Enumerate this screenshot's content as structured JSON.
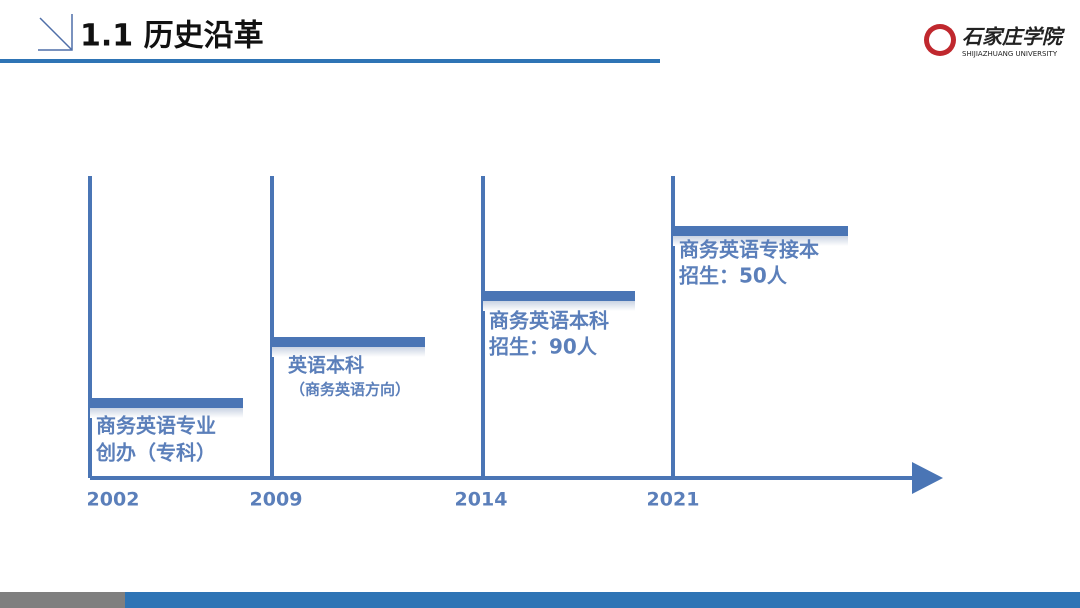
{
  "header": {
    "title": "1.1 历史沿革",
    "logo_name": "石家庄学院",
    "logo_subtitle": "SHIJIAZHUANG UNIVERSITY"
  },
  "timeline": [
    {
      "year": "2002",
      "lines": [
        "商务英语专业",
        "创办（专科）"
      ]
    },
    {
      "year": "2009",
      "lines": [
        "英语本科",
        "（商务英语方向）"
      ]
    },
    {
      "year": "2014",
      "lines": [
        "商务英语本科",
        "招生：90人"
      ]
    },
    {
      "year": "2021",
      "lines": [
        "商务英语专接本",
        "招生：50人"
      ]
    }
  ]
}
